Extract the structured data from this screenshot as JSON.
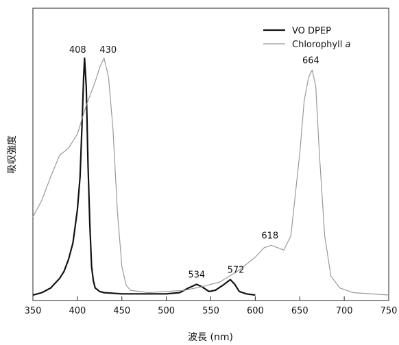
{
  "chart_data": {
    "type": "line",
    "xlabel": "波長 (nm)",
    "ylabel": "吸収強度",
    "xlim": [
      350,
      750
    ],
    "ylim": [
      0,
      1.0
    ],
    "x_ticks": [
      350,
      400,
      450,
      500,
      550,
      600,
      650,
      700,
      750
    ],
    "grid": false,
    "y_tick_labels": false,
    "legend": {
      "placement": "top-right"
    },
    "series": [
      {
        "name": "VO DPEP",
        "color": "#111111",
        "points": [
          [
            350,
            0.0
          ],
          [
            355,
            0.005
          ],
          [
            360,
            0.01
          ],
          [
            365,
            0.02
          ],
          [
            370,
            0.03
          ],
          [
            375,
            0.05
          ],
          [
            380,
            0.07
          ],
          [
            385,
            0.1
          ],
          [
            390,
            0.15
          ],
          [
            395,
            0.22
          ],
          [
            400,
            0.36
          ],
          [
            403,
            0.5
          ],
          [
            405,
            0.7
          ],
          [
            407,
            0.92
          ],
          [
            408,
            1.0
          ],
          [
            410,
            0.88
          ],
          [
            412,
            0.55
          ],
          [
            414,
            0.3
          ],
          [
            416,
            0.12
          ],
          [
            418,
            0.06
          ],
          [
            420,
            0.03
          ],
          [
            425,
            0.015
          ],
          [
            430,
            0.01
          ],
          [
            450,
            0.005
          ],
          [
            500,
            0.005
          ],
          [
            515,
            0.01
          ],
          [
            525,
            0.03
          ],
          [
            534,
            0.045
          ],
          [
            540,
            0.035
          ],
          [
            548,
            0.015
          ],
          [
            555,
            0.02
          ],
          [
            563,
            0.04
          ],
          [
            572,
            0.065
          ],
          [
            577,
            0.045
          ],
          [
            582,
            0.015
          ],
          [
            590,
            0.005
          ],
          [
            600,
            0.0
          ]
        ]
      },
      {
        "name": "Chlorophyll a",
        "color": "#999999",
        "points": [
          [
            350,
            0.33
          ],
          [
            360,
            0.4
          ],
          [
            370,
            0.5
          ],
          [
            380,
            0.59
          ],
          [
            390,
            0.62
          ],
          [
            400,
            0.68
          ],
          [
            410,
            0.8
          ],
          [
            420,
            0.9
          ],
          [
            425,
            0.96
          ],
          [
            430,
            1.0
          ],
          [
            435,
            0.92
          ],
          [
            440,
            0.7
          ],
          [
            445,
            0.35
          ],
          [
            450,
            0.12
          ],
          [
            455,
            0.04
          ],
          [
            460,
            0.02
          ],
          [
            480,
            0.01
          ],
          [
            500,
            0.015
          ],
          [
            520,
            0.02
          ],
          [
            540,
            0.035
          ],
          [
            560,
            0.055
          ],
          [
            580,
            0.1
          ],
          [
            600,
            0.16
          ],
          [
            610,
            0.2
          ],
          [
            618,
            0.21
          ],
          [
            625,
            0.2
          ],
          [
            632,
            0.19
          ],
          [
            640,
            0.25
          ],
          [
            650,
            0.6
          ],
          [
            655,
            0.82
          ],
          [
            660,
            0.92
          ],
          [
            664,
            0.95
          ],
          [
            668,
            0.88
          ],
          [
            672,
            0.6
          ],
          [
            678,
            0.25
          ],
          [
            685,
            0.08
          ],
          [
            695,
            0.03
          ],
          [
            710,
            0.01
          ],
          [
            750,
            0.0
          ]
        ]
      }
    ],
    "annotations": [
      {
        "text": "408",
        "x": 408,
        "y": 1.0,
        "series": "VO DPEP"
      },
      {
        "text": "430",
        "x": 430,
        "y": 1.0,
        "series": "Chlorophyll a"
      },
      {
        "text": "534",
        "x": 534,
        "y": 0.045,
        "series": "VO DPEP"
      },
      {
        "text": "572",
        "x": 572,
        "y": 0.065,
        "series": "VO DPEP"
      },
      {
        "text": "618",
        "x": 618,
        "y": 0.21,
        "series": "Chlorophyll a"
      },
      {
        "text": "664",
        "x": 664,
        "y": 0.95,
        "series": "Chlorophyll a"
      }
    ]
  }
}
